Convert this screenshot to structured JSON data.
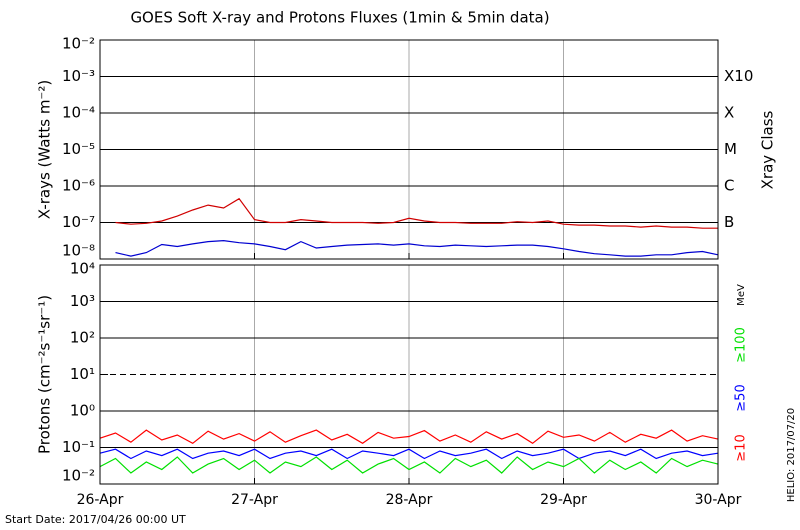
{
  "chart_data": [
    {
      "type": "line",
      "title": "GOES Soft X-ray and Protons Fluxes   (1min & 5min data)",
      "ylabel": "X-rays (Watts m⁻²)",
      "log_scale": true,
      "grid": true,
      "x": [
        0,
        0.1,
        0.2,
        0.3,
        0.4,
        0.5,
        0.6,
        0.7,
        0.8,
        0.9,
        1,
        1.1,
        1.2,
        1.3,
        1.4,
        1.5,
        1.6,
        1.7,
        1.8,
        1.9,
        2,
        2.1,
        2.2,
        2.3,
        2.4,
        2.5,
        2.6,
        2.7,
        2.8,
        2.9,
        3,
        3.1,
        3.2,
        3.3,
        3.4,
        3.5,
        3.6,
        3.7,
        3.8,
        3.9,
        4
      ],
      "xlim": [
        0,
        4
      ],
      "xticks": [
        0,
        1,
        2,
        3,
        4
      ],
      "ylim": [
        1e-08,
        0.01
      ],
      "yticks": [
        {
          "value": 1e-08,
          "label": "10⁻⁸"
        },
        {
          "value": 1e-07,
          "label": "10⁻⁷"
        },
        {
          "value": 1e-06,
          "label": "10⁻⁶"
        },
        {
          "value": 1e-05,
          "label": "10⁻⁵"
        },
        {
          "value": 0.0001,
          "label": "10⁻⁴"
        },
        {
          "value": 0.001,
          "label": "10⁻³"
        },
        {
          "value": 0.01,
          "label": "10⁻²"
        }
      ],
      "y2label": "Xray Class",
      "y2lim": [
        1e-08,
        0.01
      ],
      "y2ticks": [
        {
          "value": 1e-07,
          "label": "B"
        },
        {
          "value": 1e-06,
          "label": "C"
        },
        {
          "value": 1e-05,
          "label": "M"
        },
        {
          "value": 0.0001,
          "label": "X"
        },
        {
          "value": 0.001,
          "label": "X10"
        }
      ],
      "series": [
        {
          "color": "#d00000",
          "values": [
            null,
            1e-07,
            9e-08,
            9.5e-08,
            1.1e-07,
            1.5e-07,
            2.2e-07,
            3e-07,
            2.5e-07,
            4.5e-07,
            1.2e-07,
            1e-07,
            1e-07,
            1.2e-07,
            1.1e-07,
            1e-07,
            1e-07,
            1e-07,
            9.5e-08,
            1e-07,
            1.3e-07,
            1.1e-07,
            1e-07,
            1e-07,
            9.5e-08,
            9.5e-08,
            9.5e-08,
            1.05e-07,
            1e-07,
            1.1e-07,
            9e-08,
            8.5e-08,
            8.5e-08,
            8e-08,
            8e-08,
            7.5e-08,
            8e-08,
            7.5e-08,
            7.5e-08,
            7e-08,
            7e-08
          ]
        },
        {
          "color": "#0000d0",
          "values": [
            null,
            1.5e-08,
            1.2e-08,
            1.5e-08,
            2.5e-08,
            2.2e-08,
            2.6e-08,
            3e-08,
            3.2e-08,
            2.8e-08,
            2.6e-08,
            2.2e-08,
            1.8e-08,
            3e-08,
            2e-08,
            2.2e-08,
            2.4e-08,
            2.5e-08,
            2.6e-08,
            2.4e-08,
            2.6e-08,
            2.3e-08,
            2.2e-08,
            2.4e-08,
            2.3e-08,
            2.2e-08,
            2.3e-08,
            2.4e-08,
            2.4e-08,
            2.2e-08,
            1.9e-08,
            1.6e-08,
            1.4e-08,
            1.3e-08,
            1.2e-08,
            1.2e-08,
            1.3e-08,
            1.3e-08,
            1.5e-08,
            1.6e-08,
            1.3e-08
          ]
        }
      ]
    },
    {
      "type": "line",
      "ylabel": "Protons (cm⁻²s⁻¹sr⁻¹)",
      "log_scale": true,
      "grid": true,
      "threshold": 10,
      "legend_title": "MeV",
      "x": [
        0,
        0.1,
        0.2,
        0.3,
        0.4,
        0.5,
        0.6,
        0.7,
        0.8,
        0.9,
        1,
        1.1,
        1.2,
        1.3,
        1.4,
        1.5,
        1.6,
        1.7,
        1.8,
        1.9,
        2,
        2.1,
        2.2,
        2.3,
        2.4,
        2.5,
        2.6,
        2.7,
        2.8,
        2.9,
        3,
        3.1,
        3.2,
        3.3,
        3.4,
        3.5,
        3.6,
        3.7,
        3.8,
        3.9,
        4
      ],
      "xlim": [
        0,
        4
      ],
      "xticks": [
        {
          "value": 0,
          "label": "26-Apr"
        },
        {
          "value": 1,
          "label": "27-Apr"
        },
        {
          "value": 2,
          "label": "28-Apr"
        },
        {
          "value": 3,
          "label": "29-Apr"
        },
        {
          "value": 4,
          "label": "30-Apr"
        }
      ],
      "ylim": [
        0.01,
        10000.0
      ],
      "yticks": [
        {
          "value": 0.01,
          "label": "10⁻²"
        },
        {
          "value": 0.1,
          "label": "10⁻¹"
        },
        {
          "value": 1,
          "label": "10⁰"
        },
        {
          "value": 10,
          "label": "10¹"
        },
        {
          "value": 100,
          "label": "10²"
        },
        {
          "value": 1000,
          "label": "10³"
        },
        {
          "value": 10000,
          "label": "10⁴"
        }
      ],
      "series": [
        {
          "name": "≥10",
          "color": "#ff0000",
          "values": [
            0.18,
            0.25,
            0.14,
            0.3,
            0.16,
            0.22,
            0.13,
            0.28,
            0.17,
            0.24,
            0.15,
            0.27,
            0.14,
            0.21,
            0.3,
            0.16,
            0.23,
            0.13,
            0.26,
            0.18,
            0.2,
            0.29,
            0.15,
            0.22,
            0.14,
            0.27,
            0.17,
            0.24,
            0.13,
            0.28,
            0.19,
            0.22,
            0.15,
            0.26,
            0.14,
            0.23,
            0.18,
            0.3,
            0.15,
            0.21,
            0.17
          ]
        },
        {
          "name": "≥50",
          "color": "#0000ff",
          "values": [
            0.07,
            0.09,
            0.05,
            0.08,
            0.06,
            0.09,
            0.05,
            0.07,
            0.08,
            0.06,
            0.09,
            0.05,
            0.07,
            0.08,
            0.06,
            0.09,
            0.05,
            0.08,
            0.07,
            0.06,
            0.09,
            0.05,
            0.08,
            0.06,
            0.07,
            0.09,
            0.05,
            0.08,
            0.06,
            0.07,
            0.09,
            0.05,
            0.07,
            0.08,
            0.06,
            0.09,
            0.05,
            0.07,
            0.08,
            0.06,
            0.07
          ]
        },
        {
          "name": "≥100",
          "color": "#00e000",
          "values": [
            0.03,
            0.05,
            0.02,
            0.04,
            0.025,
            0.055,
            0.02,
            0.035,
            0.05,
            0.025,
            0.045,
            0.02,
            0.04,
            0.03,
            0.055,
            0.025,
            0.045,
            0.02,
            0.035,
            0.05,
            0.025,
            0.04,
            0.02,
            0.05,
            0.03,
            0.045,
            0.02,
            0.055,
            0.025,
            0.04,
            0.03,
            0.05,
            0.02,
            0.045,
            0.025,
            0.04,
            0.02,
            0.05,
            0.03,
            0.045,
            0.035
          ]
        }
      ]
    }
  ],
  "footer": {
    "start_date": "Start Date: 2017/04/26 00:00 UT",
    "helio": "HELIO: 2017/07/20"
  }
}
